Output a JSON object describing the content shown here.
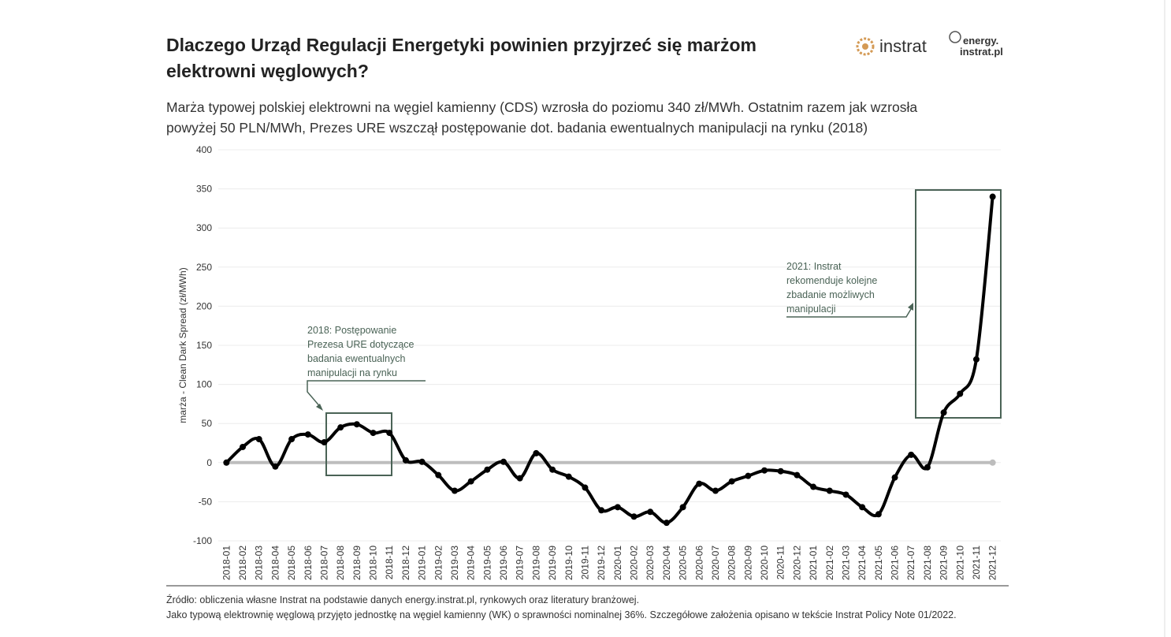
{
  "chart_data": {
    "type": "line",
    "title": [
      "Dlaczego Urząd Regulacji Energetyki powinien przyjrzeć się marżom",
      "elektrowni węglowych?"
    ],
    "subtitle": [
      "Marża typowej polskiej elektrowni na węgiel kamienny (CDS) wzrosła do poziomu 340 zł/MWh. Ostatnim razem jak wzrosła",
      "powyżej 50 PLN/MWh, Prezes URE wszczął postępowanie dot. badania ewentualnych manipulacji na rynku (2018)"
    ],
    "y_label": "marża - Clean Dark Spread (zł/MWh)",
    "categories": [
      "2018-01",
      "2018-02",
      "2018-03",
      "2018-04",
      "2018-05",
      "2018-06",
      "2018-07",
      "2018-08",
      "2018-09",
      "2018-10",
      "2018-11",
      "2018-12",
      "2019-01",
      "2019-02",
      "2019-03",
      "2019-04",
      "2019-05",
      "2019-06",
      "2019-07",
      "2019-08",
      "2019-09",
      "2019-10",
      "2019-11",
      "2019-12",
      "2020-01",
      "2020-02",
      "2020-03",
      "2020-04",
      "2020-05",
      "2020-06",
      "2020-07",
      "2020-08",
      "2020-09",
      "2020-10",
      "2020-11",
      "2020-12",
      "2021-01",
      "2021-02",
      "2021-03",
      "2021-04",
      "2021-05",
      "2021-06",
      "2021-07",
      "2021-08",
      "2021-09",
      "2021-10",
      "2021-11",
      "2021-12"
    ],
    "values": [
      0,
      20,
      30,
      -5,
      30,
      36,
      26,
      45,
      49,
      38,
      38,
      3,
      1,
      -16,
      -36,
      -24,
      -9,
      1,
      -20,
      12,
      -9,
      -18,
      -32,
      -61,
      -57,
      -69,
      -63,
      -77,
      -57,
      -27,
      -36,
      -24,
      -17,
      -10,
      -11,
      -16,
      -31,
      -36,
      -41,
      -57,
      -66,
      -19,
      10,
      -6,
      64,
      88,
      132,
      340
    ],
    "color": "#000000",
    "ylim": [
      -100,
      400
    ],
    "yticks": [
      400,
      350,
      300,
      250,
      200,
      150,
      100,
      50,
      0,
      -50,
      -100
    ],
    "grid": true,
    "annotations": [
      {
        "lines": [
          "2018: Postępowanie",
          "Prezesa URE dotyczące",
          "badania ewentualnych",
          "manipulacji na rynku"
        ]
      },
      {
        "lines": [
          "2021: Instrat",
          "rekomenduje kolejne",
          "zbadanie możliwych",
          "manipulacji"
        ]
      }
    ],
    "notes": [
      "Źródło: obliczenia własne Instrat na podstawie danych energy.instrat.pl, rynkowych oraz literatury branżowej.",
      "Jako typową elektrownię węglową przyjęto jednostkę na węgiel kamienny (WK) o sprawności nominalnej 36%. Szczegółowe założenia opisano w tekście Instrat Policy Note 01/2022."
    ],
    "logos": [
      "instrat",
      "energy.",
      "instrat.pl"
    ]
  }
}
